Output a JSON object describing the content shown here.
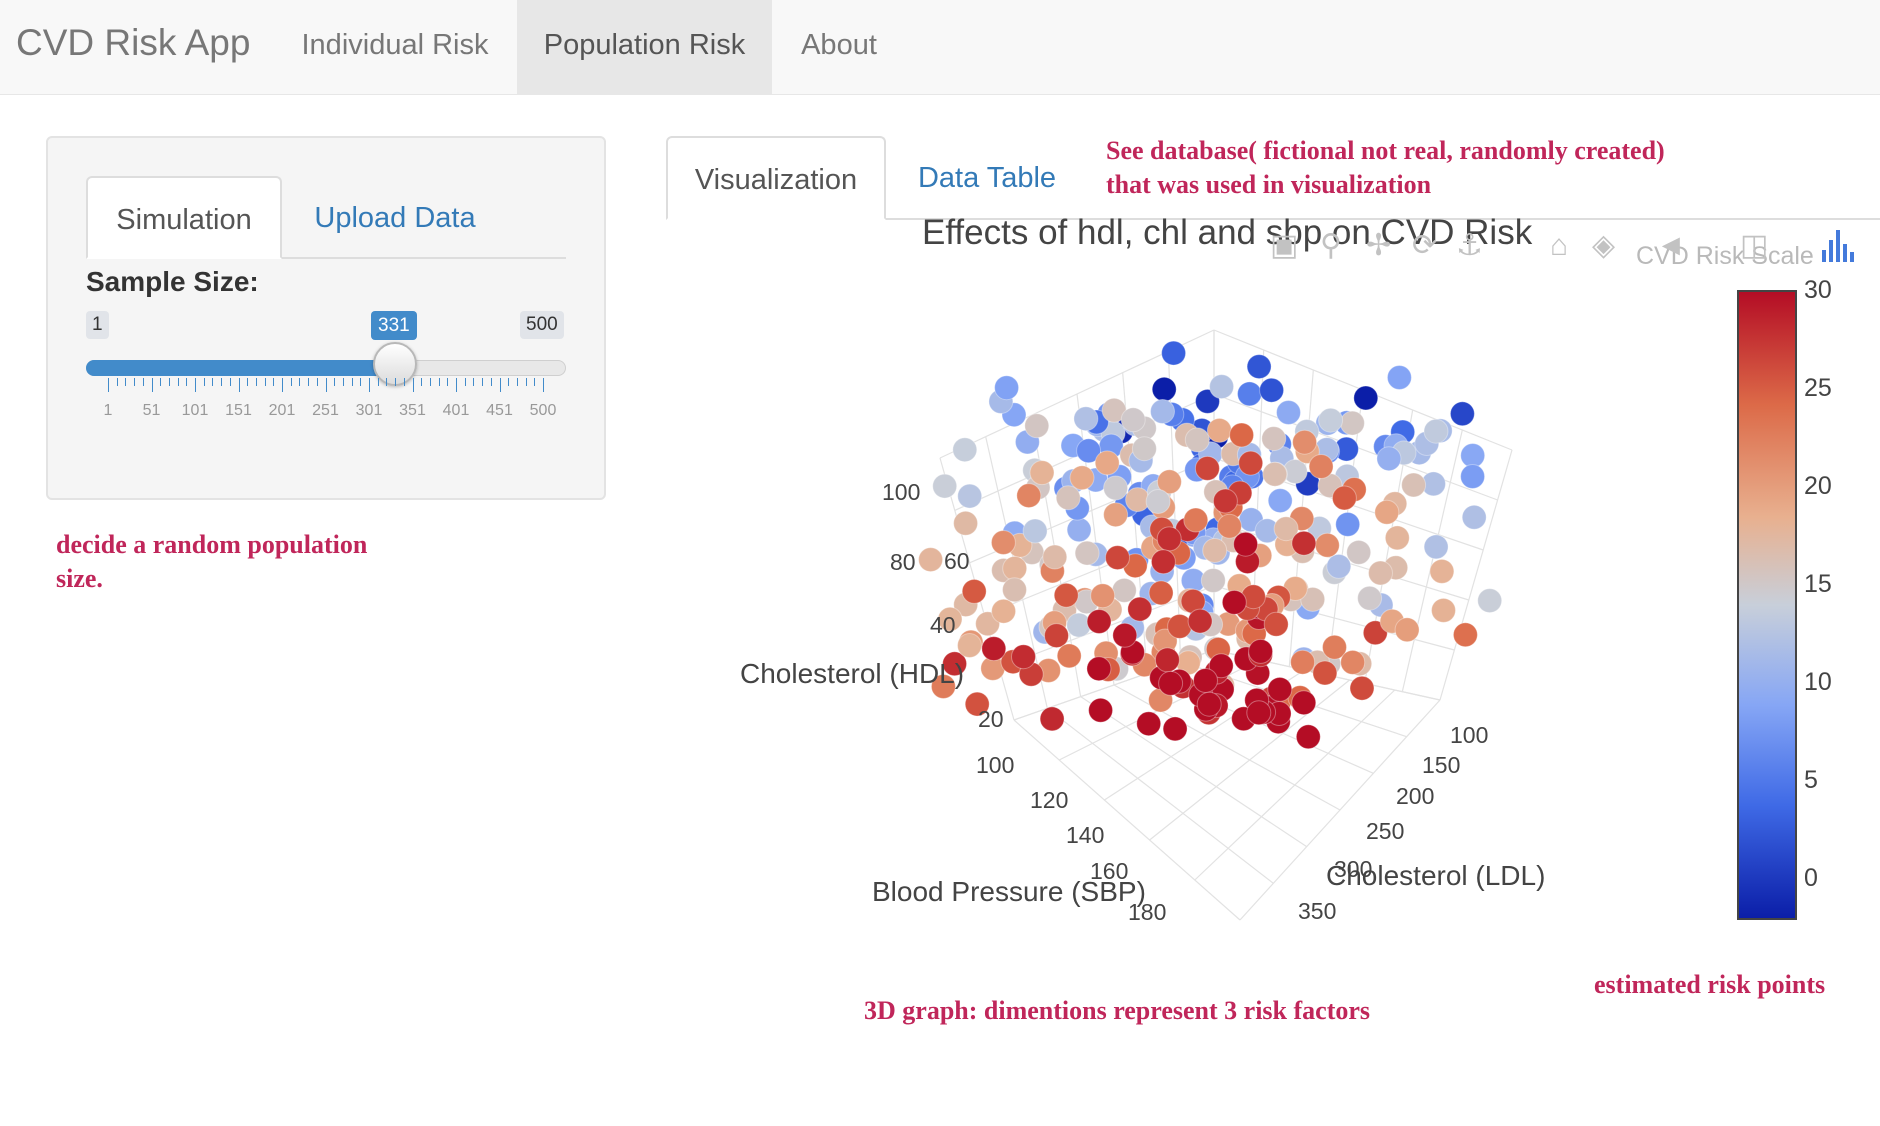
{
  "navbar": {
    "brand": "CVD Risk App",
    "items": [
      {
        "label": "Individual Risk",
        "active": false
      },
      {
        "label": "Population Risk",
        "active": true
      },
      {
        "label": "About",
        "active": false
      }
    ]
  },
  "sidebar": {
    "tabs": [
      {
        "label": "Simulation",
        "active": true
      },
      {
        "label": "Upload Data",
        "active": false
      }
    ],
    "slider": {
      "label": "Sample Size:",
      "min": "1",
      "max": "500",
      "value": "331",
      "value_fraction": 0.661,
      "tick_labels": [
        "1",
        "51",
        "101",
        "151",
        "201",
        "251",
        "301",
        "351",
        "401",
        "451",
        "500"
      ]
    },
    "annotation": "decide a random population size."
  },
  "main": {
    "tabs": [
      {
        "label": "Visualization",
        "active": true
      },
      {
        "label": "Data Table",
        "active": false
      }
    ],
    "annotation_top": "See database( fictional not real, randomly created)  that was used in visualization",
    "annotation_bottom": "3D graph: dimentions represent 3 risk factors",
    "annotation_right": "estimated risk points",
    "modebar_icons": [
      "camera-icon",
      "zoom-icon",
      "pan-icon",
      "orbit-icon",
      "turntable-icon",
      "home-icon",
      "camera-view-icon",
      "toggle-spike-icon",
      "hover-icon",
      "plotly-logo-icon"
    ]
  },
  "chart_data": {
    "type": "scatter",
    "subtype": "scatter3d",
    "title": "Effects of hdl, chl and sbp on CVD Risk",
    "axes": {
      "x": {
        "label": "Blood Pressure (SBP)",
        "ticks": [
          "100",
          "120",
          "140",
          "160",
          "180"
        ],
        "range": [
          95,
          185
        ]
      },
      "y": {
        "label": "Cholesterol (LDL)",
        "ticks": [
          "100",
          "150",
          "200",
          "250",
          "300",
          "350"
        ],
        "range": [
          90,
          360
        ]
      },
      "z": {
        "label": "Cholesterol (HDL)",
        "ticks": [
          "20",
          "40",
          "60",
          "80",
          "100"
        ],
        "range": [
          15,
          105
        ]
      }
    },
    "colorbar": {
      "title": "CVD Risk Scale",
      "ticks": [
        "30",
        "25",
        "20",
        "15",
        "10",
        "5",
        "0"
      ],
      "range": [
        -2,
        30
      ],
      "colors": [
        "#0b1ea8",
        "#3f6ae6",
        "#86a6f5",
        "#c8cfda",
        "#e8b08f",
        "#dc6a48",
        "#b40d25"
      ]
    },
    "sample_size": 331,
    "grid": true
  }
}
